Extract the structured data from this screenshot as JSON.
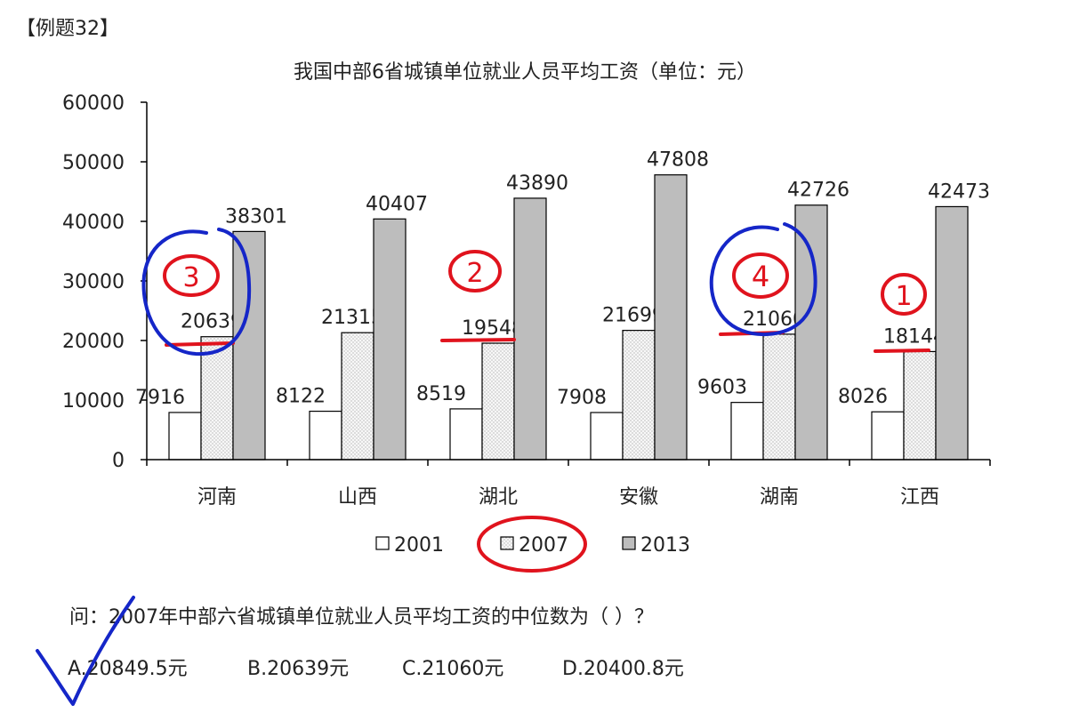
{
  "header": {
    "example_label": "【例题32】"
  },
  "chart_data": {
    "type": "bar",
    "title": "我国中部6省城镇单位就业人员平均工资（单位：元）",
    "categories": [
      "河南",
      "山西",
      "湖北",
      "安徽",
      "湖南",
      "江西"
    ],
    "series": [
      {
        "name": "2001",
        "values": [
          7916,
          8122,
          8519,
          7908,
          9603,
          8026
        ],
        "color": "#ffffff",
        "pattern": "none"
      },
      {
        "name": "2007",
        "values": [
          20639,
          21315,
          19548,
          21699,
          21060,
          18144
        ],
        "color": "#f4f4f4",
        "pattern": "dotted"
      },
      {
        "name": "2013",
        "values": [
          38301,
          40407,
          43890,
          47808,
          42726,
          42473
        ],
        "color": "#bdbdbd",
        "pattern": "none"
      }
    ],
    "y_ticks": [
      "0",
      "10000",
      "20000",
      "30000",
      "40000",
      "50000",
      "60000"
    ],
    "ylim": [
      0,
      60000
    ],
    "grid": false,
    "legend_position": "bottom"
  },
  "question": {
    "text": "问：2007年中部六省城镇单位就业人员平均工资的中位数为（ ）？",
    "options": [
      {
        "label": "A.20849.5元"
      },
      {
        "label": "B.20639元"
      },
      {
        "label": "C.21060元"
      },
      {
        "label": "D.20400.8元"
      }
    ]
  },
  "annotations": {
    "rank_marks": [
      "3",
      "2",
      "4",
      "1"
    ],
    "ink_colors": {
      "red": "#e0131d",
      "blue": "#1526c8"
    }
  }
}
